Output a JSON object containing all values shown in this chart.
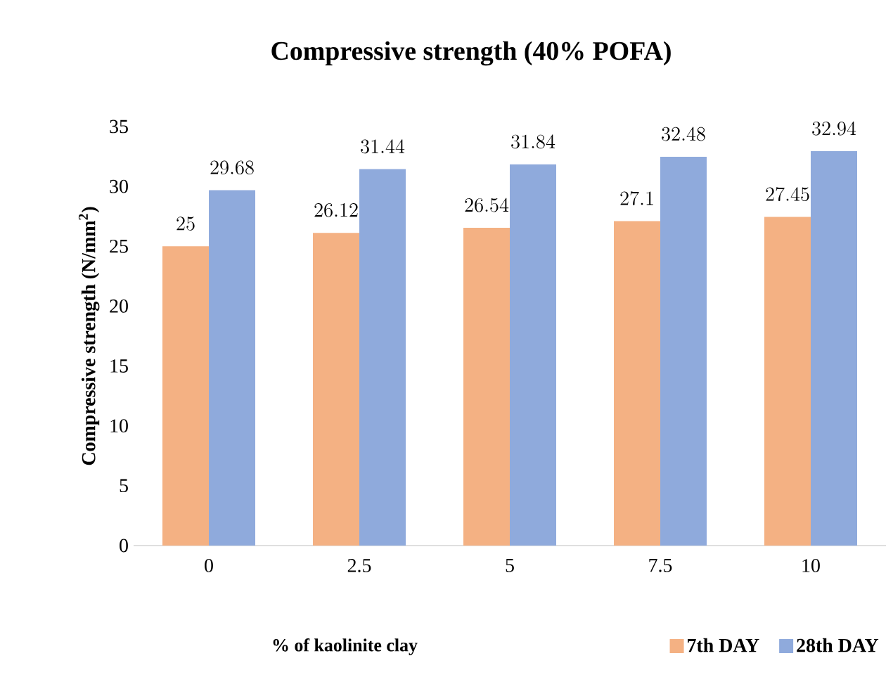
{
  "chart_data": {
    "type": "bar",
    "title": "Compressive strength (40% POFA)",
    "xlabel": "% of kaolinite clay",
    "ylabel": "Compressive strength (N/mm$^{2}$)",
    "categories": [
      "0",
      "2.5",
      "5",
      "7.5",
      "10"
    ],
    "series": [
      {
        "name": "7th DAY",
        "color": "#f4b183",
        "values": [
          25,
          26.12,
          26.54,
          27.1,
          27.45
        ]
      },
      {
        "name": "28th DAY",
        "color": "#8faadc",
        "values": [
          29.68,
          31.44,
          31.84,
          32.48,
          32.94
        ]
      }
    ],
    "ylim": [
      0,
      35
    ],
    "yticks": [
      0,
      5,
      10,
      15,
      20,
      25,
      30,
      35
    ],
    "data_labels": true,
    "legend": "bottom right"
  }
}
